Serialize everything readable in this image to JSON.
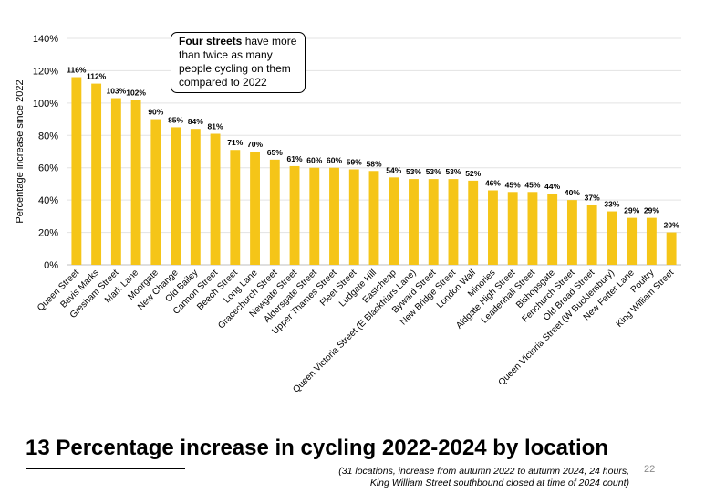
{
  "chart_data": {
    "type": "bar",
    "title": "",
    "xlabel": "",
    "ylabel": "Percentage increase since 2022",
    "ylim": [
      0,
      140
    ],
    "yticks": [
      "0%",
      "20%",
      "40%",
      "60%",
      "80%",
      "100%",
      "120%",
      "140%"
    ],
    "grid": true,
    "bar_color": "#f5c518",
    "categories": [
      "Queen Street",
      "Bevis Marks",
      "Gresham Street",
      "Mark Lane",
      "Moorgate",
      "New Change",
      "Old Bailey",
      "Cannon Street",
      "Beech Street",
      "Long Lane",
      "Gracechurch Street",
      "Newgate Street",
      "Aldersgate Street",
      "Upper Thames Street",
      "Fleet Street",
      "Ludgate Hill",
      "Eastcheap",
      "Queen Victoria Street (E Blackfriars Lane)",
      "Byward Street",
      "New Bridge Street",
      "London Wall",
      "Minories",
      "Aldgate High Street",
      "Leadenhall Street",
      "Bishopsgate",
      "Fenchurch Street",
      "Old Broad Street",
      "Queen Victoria Street (W Bucklersbury)",
      "New Fetter Lane",
      "Poultry",
      "King William Street"
    ],
    "values": [
      116,
      112,
      103,
      102,
      90,
      85,
      84,
      81,
      71,
      70,
      65,
      61,
      60,
      60,
      59,
      58,
      54,
      53,
      53,
      53,
      52,
      46,
      45,
      45,
      44,
      40,
      37,
      33,
      29,
      29,
      20
    ],
    "data_labels": [
      "116%",
      "112%",
      "103%",
      "102%",
      "90%",
      "85%",
      "84%",
      "81%",
      "71%",
      "70%",
      "65%",
      "61%",
      "60%",
      "60%",
      "59%",
      "58%",
      "54%",
      "53%",
      "53%",
      "53%",
      "52%",
      "46%",
      "45%",
      "45%",
      "44%",
      "40%",
      "37%",
      "33%",
      "29%",
      "29%",
      "20%"
    ]
  },
  "callout": {
    "bold": "Four streets",
    "rest": " have more than twice as many people cycling on them compared to 2022"
  },
  "slide": {
    "title": "13 Percentage increase in cycling 2022-2024 by location",
    "footnote_line1": "(31 locations, increase from autumn 2022 to autumn 2024, 24 hours,",
    "footnote_line2": "King William Street southbound closed at time of 2024 count)",
    "page_number": "22"
  }
}
